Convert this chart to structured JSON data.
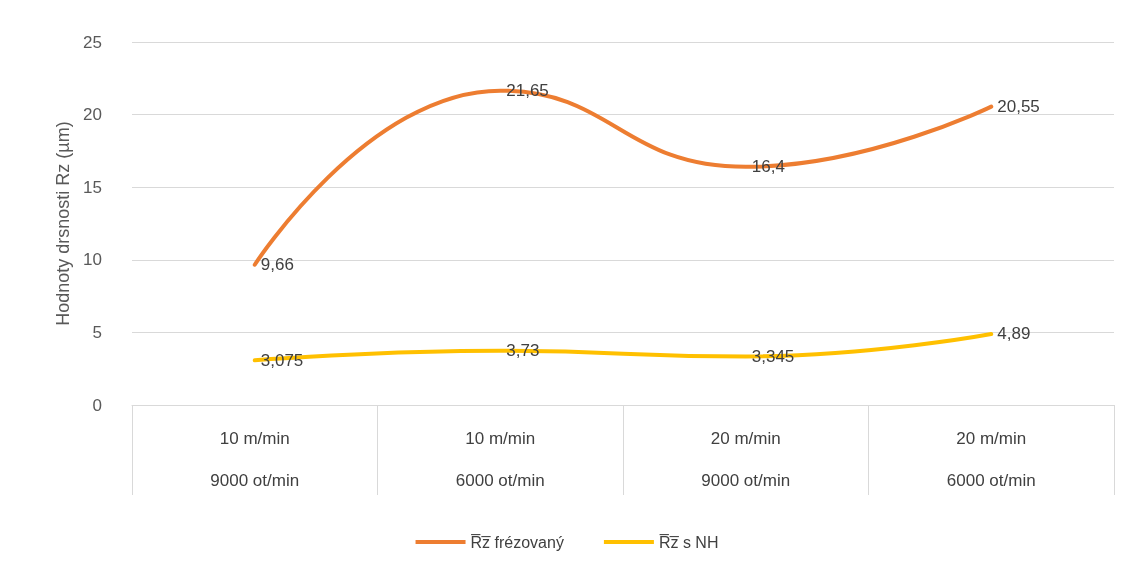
{
  "chart_data": {
    "type": "line",
    "ylabel": "Hodnoty drsnosti Rz (µm)",
    "categories": [
      "10 m/min\n9000 ot/min",
      "10 m/min\n6000 ot/min",
      "20 m/min\n9000 ot/min",
      "20 m/min\n6000 ot/min"
    ],
    "series": [
      {
        "name": "R̅z̅ frézovaný",
        "color": "#ed7d31",
        "values": [
          9.66,
          21.65,
          16.4,
          20.55
        ]
      },
      {
        "name": "R̅z̅ s NH",
        "color": "#ffc000",
        "values": [
          3.075,
          3.73,
          3.345,
          4.89
        ]
      }
    ],
    "value_labels": [
      [
        "9,66",
        "21,65",
        "16,4",
        "20,55"
      ],
      [
        "3,075",
        "3,73",
        "3,345",
        "4,89"
      ]
    ],
    "ylim": [
      0,
      25
    ],
    "yticks": [
      0,
      5,
      10,
      15,
      20,
      25
    ],
    "grid": "y",
    "legend": "bottom",
    "marker": "none",
    "line_style": "solid"
  }
}
